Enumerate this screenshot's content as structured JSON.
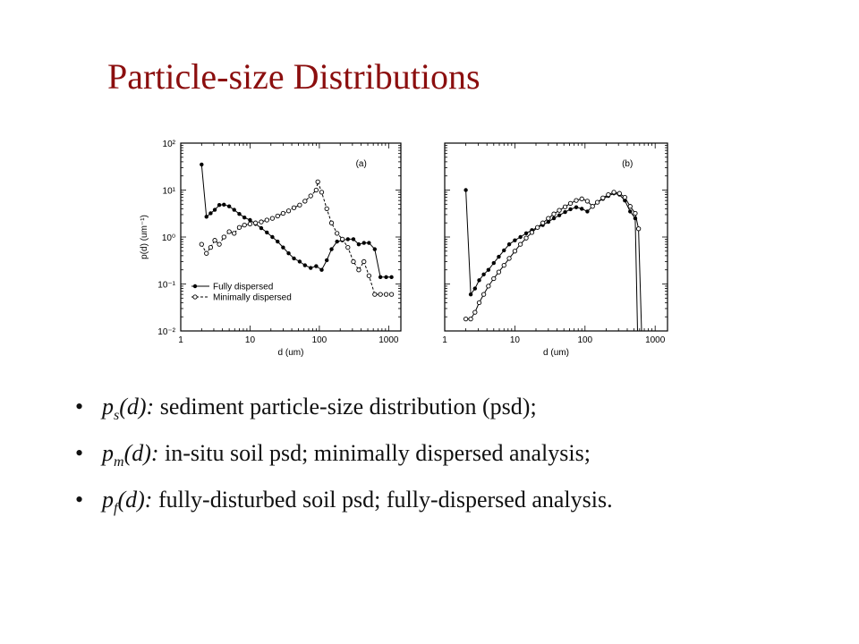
{
  "title": "Particle-size Distributions",
  "bullets": [
    {
      "sym": "p",
      "sub": "s",
      "arg": "(d):",
      "text": " sediment particle-size distribution (psd);"
    },
    {
      "sym": "p",
      "sub": "m",
      "arg": "(d):",
      "text": " in-situ soil psd;  minimally dispersed analysis;"
    },
    {
      "sym": "p",
      "sub": "f",
      "arg": "(d):",
      "text": " fully-disturbed soil psd; fully-dispersed analysis."
    }
  ],
  "chart_data": [
    {
      "type": "line",
      "panel_label": "(a)",
      "xlabel": "d (um)",
      "ylabel": "p(d) (um⁻¹)",
      "xscale": "log",
      "yscale": "log",
      "xlim": [
        1,
        1500
      ],
      "ylim": [
        0.01,
        100
      ],
      "xticks": [
        "1",
        "10",
        "100",
        "1000"
      ],
      "yticks": [
        "10⁻²",
        "10⁻¹",
        "10⁰",
        "10¹",
        "10²"
      ],
      "legend": "bottom-left",
      "series": [
        {
          "name": "Fully dispersed",
          "marker": "filled-circle",
          "line": "solid",
          "points": [
            [
              2,
              35
            ],
            [
              2.35,
              2.7
            ],
            [
              2.7,
              3.2
            ],
            [
              3.1,
              3.8
            ],
            [
              3.6,
              4.8
            ],
            [
              4.2,
              4.9
            ],
            [
              5,
              4.5
            ],
            [
              5.9,
              3.8
            ],
            [
              7,
              3.1
            ],
            [
              8.3,
              2.6
            ],
            [
              10,
              2.3
            ],
            [
              12,
              1.9
            ],
            [
              14.5,
              1.55
            ],
            [
              17.5,
              1.25
            ],
            [
              21,
              1.0
            ],
            [
              25,
              0.8
            ],
            [
              30,
              0.6
            ],
            [
              36,
              0.45
            ],
            [
              43,
              0.35
            ],
            [
              52,
              0.3
            ],
            [
              62,
              0.25
            ],
            [
              75,
              0.22
            ],
            [
              90,
              0.24
            ],
            [
              108,
              0.2
            ],
            [
              128,
              0.32
            ],
            [
              150,
              0.55
            ],
            [
              180,
              0.8
            ],
            [
              215,
              0.85
            ],
            [
              258,
              0.9
            ],
            [
              310,
              0.9
            ],
            [
              370,
              0.7
            ],
            [
              440,
              0.75
            ],
            [
              520,
              0.75
            ],
            [
              630,
              0.55
            ],
            [
              760,
              0.14
            ],
            [
              920,
              0.14
            ],
            [
              1100,
              0.14
            ]
          ]
        },
        {
          "name": "Minimally dispersed",
          "marker": "open-circle",
          "line": "dashed",
          "points": [
            [
              2,
              0.7
            ],
            [
              2.35,
              0.45
            ],
            [
              2.7,
              0.6
            ],
            [
              3.1,
              0.85
            ],
            [
              3.6,
              0.7
            ],
            [
              4.2,
              1.0
            ],
            [
              5,
              1.3
            ],
            [
              5.9,
              1.2
            ],
            [
              7,
              1.6
            ],
            [
              8.3,
              1.8
            ],
            [
              10,
              1.9
            ],
            [
              12,
              2.0
            ],
            [
              14.5,
              2.1
            ],
            [
              17.5,
              2.3
            ],
            [
              21,
              2.5
            ],
            [
              25,
              2.8
            ],
            [
              30,
              3.2
            ],
            [
              36,
              3.6
            ],
            [
              43,
              4.2
            ],
            [
              52,
              4.8
            ],
            [
              62,
              5.8
            ],
            [
              75,
              7.5
            ],
            [
              90,
              10
            ],
            [
              95,
              15
            ],
            [
              108,
              9
            ],
            [
              128,
              4
            ],
            [
              150,
              2
            ],
            [
              180,
              1.2
            ],
            [
              215,
              0.9
            ],
            [
              258,
              0.6
            ],
            [
              310,
              0.3
            ],
            [
              370,
              0.2
            ],
            [
              440,
              0.3
            ],
            [
              520,
              0.15
            ],
            [
              630,
              0.06
            ],
            [
              760,
              0.06
            ],
            [
              920,
              0.06
            ],
            [
              1100,
              0.06
            ]
          ]
        }
      ]
    },
    {
      "type": "line",
      "panel_label": "(b)",
      "xlabel": "d (um)",
      "ylabel": "",
      "xscale": "log",
      "yscale": "log",
      "xlim": [
        1,
        1500
      ],
      "ylim": [
        0.01,
        100
      ],
      "xticks": [
        "1",
        "10",
        "100",
        "1000"
      ],
      "yticks": [],
      "series": [
        {
          "name": "Fully dispersed",
          "marker": "filled-circle",
          "line": "solid",
          "points": [
            [
              2,
              10
            ],
            [
              2.35,
              0.06
            ],
            [
              2.7,
              0.08
            ],
            [
              3.1,
              0.12
            ],
            [
              3.6,
              0.16
            ],
            [
              4.2,
              0.2
            ],
            [
              5,
              0.28
            ],
            [
              5.9,
              0.38
            ],
            [
              7,
              0.52
            ],
            [
              8.3,
              0.7
            ],
            [
              10,
              0.85
            ],
            [
              12,
              1.0
            ],
            [
              14.5,
              1.2
            ],
            [
              17.5,
              1.4
            ],
            [
              21,
              1.6
            ],
            [
              25,
              1.8
            ],
            [
              30,
              2.1
            ],
            [
              36,
              2.5
            ],
            [
              43,
              2.9
            ],
            [
              52,
              3.4
            ],
            [
              62,
              3.9
            ],
            [
              75,
              4.3
            ],
            [
              90,
              4.0
            ],
            [
              108,
              3.5
            ],
            [
              128,
              4.5
            ],
            [
              150,
              5.5
            ],
            [
              180,
              6.5
            ],
            [
              215,
              7.5
            ],
            [
              258,
              8.5
            ],
            [
              310,
              8.0
            ],
            [
              370,
              6.0
            ],
            [
              440,
              3.5
            ],
            [
              520,
              2.5
            ],
            [
              560,
              0.01
            ]
          ]
        },
        {
          "name": "Minimally dispersed",
          "marker": "open-circle",
          "line": "solid",
          "points": [
            [
              2,
              0.018
            ],
            [
              2.35,
              0.018
            ],
            [
              2.7,
              0.025
            ],
            [
              3.1,
              0.04
            ],
            [
              3.6,
              0.06
            ],
            [
              4.2,
              0.09
            ],
            [
              5,
              0.13
            ],
            [
              5.9,
              0.18
            ],
            [
              7,
              0.25
            ],
            [
              8.3,
              0.35
            ],
            [
              10,
              0.5
            ],
            [
              12,
              0.7
            ],
            [
              14.5,
              0.95
            ],
            [
              17.5,
              1.25
            ],
            [
              21,
              1.6
            ],
            [
              25,
              2.0
            ],
            [
              30,
              2.5
            ],
            [
              36,
              3.1
            ],
            [
              43,
              3.7
            ],
            [
              52,
              4.4
            ],
            [
              62,
              5.2
            ],
            [
              75,
              6.0
            ],
            [
              90,
              6.5
            ],
            [
              108,
              5.8
            ],
            [
              128,
              4.5
            ],
            [
              150,
              5.5
            ],
            [
              180,
              6.8
            ],
            [
              215,
              8.0
            ],
            [
              258,
              9.0
            ],
            [
              310,
              8.5
            ],
            [
              370,
              7.0
            ],
            [
              440,
              4.5
            ],
            [
              520,
              3.2
            ],
            [
              580,
              1.5
            ],
            [
              640,
              0.01
            ]
          ]
        }
      ]
    }
  ]
}
